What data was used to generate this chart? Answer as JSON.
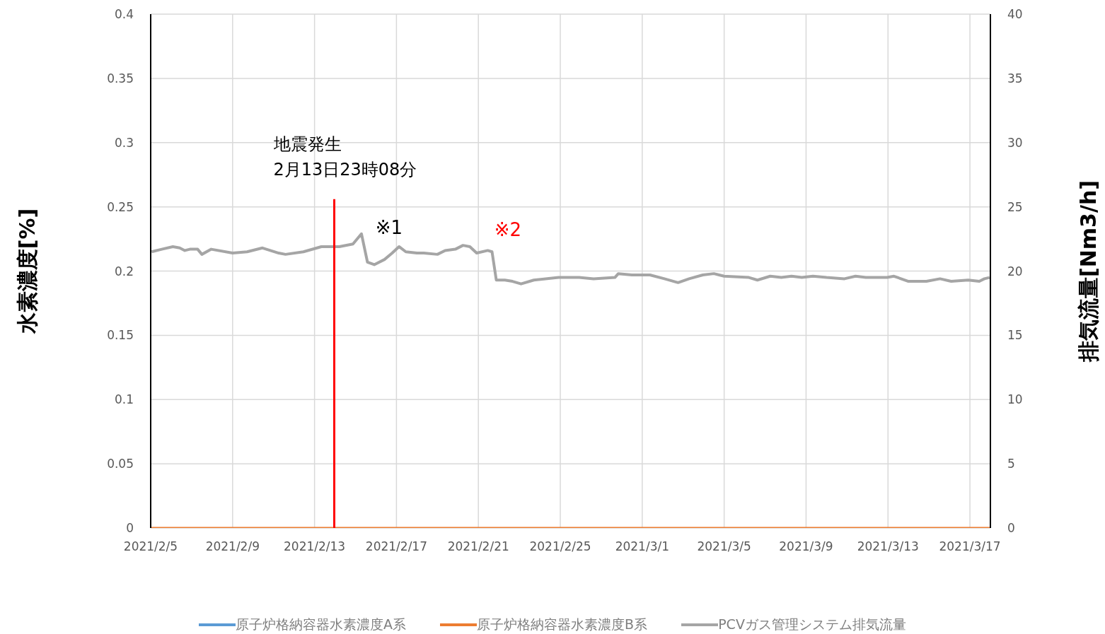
{
  "chart_data": {
    "type": "line",
    "ylabel": "水素濃度[%]",
    "y2label": "排気流量[Nm3/h]",
    "xlim": [
      "2021-02-05",
      "2021-03-18"
    ],
    "xticks": [
      {
        "value": "2021-02-05",
        "label": "2021/2/5"
      },
      {
        "value": "2021-02-09",
        "label": "2021/2/9"
      },
      {
        "value": "2021-02-13",
        "label": "2021/2/13"
      },
      {
        "value": "2021-02-17",
        "label": "2021/2/17"
      },
      {
        "value": "2021-02-21",
        "label": "2021/2/21"
      },
      {
        "value": "2021-02-25",
        "label": "2021/2/25"
      },
      {
        "value": "2021-03-01",
        "label": "2021/3/1"
      },
      {
        "value": "2021-03-05",
        "label": "2021/3/5"
      },
      {
        "value": "2021-03-09",
        "label": "2021/3/9"
      },
      {
        "value": "2021-03-13",
        "label": "2021/3/13"
      },
      {
        "value": "2021-03-17",
        "label": "2021/3/17"
      }
    ],
    "ylim": [
      0,
      0.4
    ],
    "yticks": [
      0,
      0.05,
      0.1,
      0.15,
      0.2,
      0.25,
      0.3,
      0.35,
      0.4
    ],
    "y2lim": [
      0,
      40
    ],
    "y2ticks": [
      0,
      5,
      10,
      15,
      20,
      25,
      30,
      35,
      40
    ],
    "grid": true,
    "legend": "bottom",
    "marker": "none",
    "line_style": "solid",
    "series": [
      {
        "name": "原子炉格納容器水素濃度A系",
        "color": "#5b9bd5"
      },
      {
        "name": "原子炉格納容器水素濃度B系",
        "color": "#ed7d31",
        "x": [
          "2021-02-05",
          "2021-03-18"
        ],
        "values": [
          0,
          0
        ]
      },
      {
        "name": "PCVガス管理システム排気流量",
        "color": "#a5a5a5",
        "axis": "y2",
        "x": [
          "2021-02-05T01:00",
          "2021-02-05T13:00",
          "2021-02-06T02:00",
          "2021-02-06T10:00",
          "2021-02-06T16:00",
          "2021-02-06T22:00",
          "2021-02-07T07:00",
          "2021-02-07T12:00",
          "2021-02-07T23:00",
          "2021-02-09T00:00",
          "2021-02-09T17:00",
          "2021-02-10T11:00",
          "2021-02-11T06:00",
          "2021-02-11T14:00",
          "2021-02-12T11:00",
          "2021-02-13T08:00",
          "2021-02-14T05:00",
          "2021-02-14T21:00",
          "2021-02-15T07:00",
          "2021-02-15T14:00",
          "2021-02-15T22:00",
          "2021-02-16T10:00",
          "2021-02-16T19:00",
          "2021-02-17T03:00",
          "2021-02-17T11:00",
          "2021-02-18T00:00",
          "2021-02-18T08:00",
          "2021-02-19T00:00",
          "2021-02-19T09:00",
          "2021-02-19T21:00",
          "2021-02-20T06:00",
          "2021-02-20T14:00",
          "2021-02-20T22:00",
          "2021-02-21T11:00",
          "2021-02-21T16:00",
          "2021-02-21T21:00",
          "2021-02-22T07:00",
          "2021-02-22T16:00",
          "2021-02-23T02:00",
          "2021-02-23T17:00",
          "2021-02-24T22:00",
          "2021-02-25T22:00",
          "2021-02-26T15:00",
          "2021-02-27T16:00",
          "2021-02-27T20:00",
          "2021-02-28T12:00",
          "2021-02-28T21:00",
          "2021-03-01T09:00",
          "2021-03-02T02:00",
          "2021-03-02T18:00",
          "2021-03-03T07:00",
          "2021-03-03T23:00",
          "2021-03-04T12:00",
          "2021-03-05T00:00",
          "2021-03-06T05:00",
          "2021-03-06T15:00",
          "2021-03-07T06:00",
          "2021-03-07T19:00",
          "2021-03-08T07:00",
          "2021-03-08T19:00",
          "2021-03-09T08:00",
          "2021-03-10T00:00",
          "2021-03-10T21:00",
          "2021-03-11T10:00",
          "2021-03-11T22:00",
          "2021-03-12T11:00",
          "2021-03-12T23:00",
          "2021-03-13T07:00",
          "2021-03-14T00:00",
          "2021-03-14T21:00",
          "2021-03-15T13:00",
          "2021-03-16T02:00",
          "2021-03-16T22:00",
          "2021-03-17T11:00",
          "2021-03-17T17:00",
          "2021-03-17T23:00"
        ],
        "values": [
          21.5,
          21.7,
          21.9,
          21.8,
          21.6,
          21.7,
          21.7,
          21.3,
          21.7,
          21.4,
          21.5,
          21.8,
          21.4,
          21.3,
          21.5,
          21.9,
          21.9,
          22.1,
          22.9,
          20.7,
          20.5,
          20.9,
          21.4,
          21.9,
          21.5,
          21.4,
          21.4,
          21.3,
          21.6,
          21.7,
          22.0,
          21.9,
          21.4,
          21.6,
          21.5,
          19.3,
          19.3,
          19.2,
          19.0,
          19.3,
          19.5,
          19.5,
          19.4,
          19.5,
          19.8,
          19.7,
          19.7,
          19.7,
          19.4,
          19.1,
          19.4,
          19.7,
          19.8,
          19.6,
          19.5,
          19.3,
          19.6,
          19.5,
          19.6,
          19.5,
          19.6,
          19.5,
          19.4,
          19.6,
          19.5,
          19.5,
          19.5,
          19.6,
          19.2,
          19.2,
          19.4,
          19.2,
          19.3,
          19.2,
          19.4,
          19.5
        ]
      }
    ],
    "ref_lines": [
      {
        "axis": "x",
        "value": "2021-02-13T23:08",
        "label": "地震発生\n2月13日23時08分",
        "color": "#ff0000",
        "line_style": "solid"
      }
    ],
    "annotations": [
      "※1",
      "※2"
    ]
  }
}
